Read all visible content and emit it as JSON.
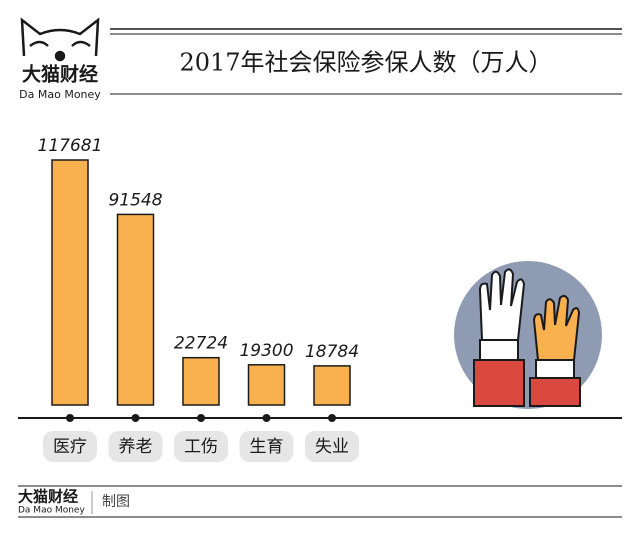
{
  "logo": {
    "name": "大猫财经",
    "english": "Da Mao Money"
  },
  "chart_data": {
    "type": "bar",
    "title": "2017年社会保险参保人数（万人）",
    "categories": [
      "医疗",
      "养老",
      "工伤",
      "生育",
      "失业"
    ],
    "values": [
      117681,
      91548,
      22724,
      19300,
      18784
    ],
    "color": "#f9b150"
  },
  "footer": {
    "name": "大猫财经",
    "english": "Da Mao Money",
    "note": "制图"
  }
}
